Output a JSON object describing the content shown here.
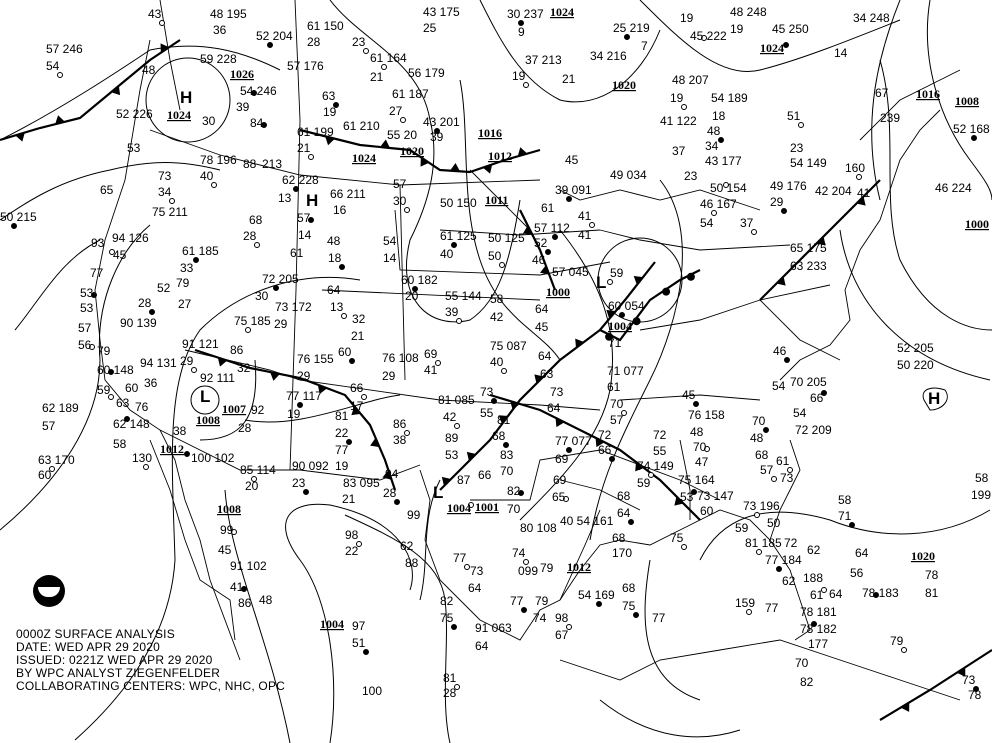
{
  "info": {
    "line1": "0000Z SURFACE ANALYSIS",
    "line2": "DATE: WED APR 29 2020",
    "line3": "ISSUED: 0221Z WED APR 29 2020",
    "line4": "BY WPC ANALYST ZIEGENFELDER",
    "line5": "COLLABORATING CENTERS: WPC, NHC, OPC"
  },
  "logo": {
    "label": "NOAA",
    "icon": "noaa-logo"
  },
  "colors": {
    "ink": "#000000",
    "background": "#ffffff"
  },
  "pressure_labels": [
    "1026",
    "1024",
    "1024",
    "1020",
    "1016",
    "1012",
    "1011",
    "1024",
    "1020",
    "1024",
    "1016",
    "1008",
    "1000",
    "1008",
    "1007",
    "1012",
    "1008",
    "1000",
    "1004",
    "1004",
    "1001",
    "1012",
    "1004",
    "1020"
  ],
  "centers": [
    "H",
    "H",
    "H",
    "L",
    "L",
    "L"
  ],
  "stations": [
    "43",
    "48 195",
    "36",
    "52 204",
    "61 150",
    "28",
    "23",
    "43 175",
    "25",
    "30 237",
    "9",
    "37 213",
    "19",
    "34 216",
    "21",
    "25 219",
    "7",
    "19",
    "45 222",
    "19",
    "48 248",
    "45 250",
    "34 248",
    "57 246",
    "54",
    "48",
    "59 228",
    "54 246",
    "39",
    "57 176",
    "61 164",
    "56 179",
    "21",
    "63",
    "19",
    "61 187",
    "27",
    "52 226",
    "30",
    "84",
    "53",
    "61 199",
    "21",
    "61 210",
    "55 20",
    "43 201",
    "39",
    "78 196",
    "40",
    "88",
    "213",
    "62 228",
    "66 211",
    "57",
    "30",
    "16",
    "13",
    "57",
    "14",
    "68",
    "28",
    "61",
    "48",
    "18",
    "75 211",
    "73",
    "34",
    "65",
    "94 126",
    "61 185",
    "33",
    "79",
    "93",
    "45",
    "77",
    "53",
    "53",
    "57",
    "56",
    "52",
    "27",
    "28",
    "90 139",
    "91 121",
    "75 185",
    "29",
    "73 172",
    "72 205",
    "30",
    "64",
    "13",
    "32",
    "21",
    "60",
    "76 155",
    "76 108",
    "69",
    "29",
    "41",
    "61 125",
    "40",
    "50 125",
    "50",
    "54",
    "14",
    "60 182",
    "20",
    "55 144",
    "39",
    "58",
    "42",
    "52",
    "46",
    "57 045",
    "59",
    "64",
    "45",
    "60 054",
    "71",
    "75 087",
    "40",
    "64",
    "63",
    "73",
    "73",
    "81 085",
    "42",
    "55",
    "81",
    "68",
    "89",
    "53",
    "86",
    "38",
    "64",
    "77 077",
    "69",
    "69",
    "65",
    "83",
    "70",
    "82",
    "70",
    "87",
    "66",
    "99",
    "94",
    "28",
    "71 077",
    "61",
    "70",
    "57",
    "72",
    "66",
    "72",
    "55",
    "74 149",
    "59",
    "68",
    "64",
    "62 189",
    "57",
    "63 170",
    "60",
    "79",
    "60 148",
    "94 131",
    "59",
    "60",
    "36",
    "76",
    "62 148",
    "63",
    "58",
    "130",
    "92 111",
    "100 102",
    "38",
    "86",
    "32",
    "29",
    "28",
    "92",
    "77 117",
    "19",
    "29",
    "66",
    "17",
    "81",
    "22",
    "77",
    "19",
    "85 114",
    "20",
    "90 092",
    "23",
    "83 095",
    "21",
    "99",
    "45",
    "91 102",
    "41",
    "86",
    "48",
    "98",
    "22",
    "97",
    "45",
    "76 158",
    "48",
    "70",
    "47",
    "75 164",
    "53",
    "73 147",
    "60",
    "73 196",
    "50",
    "59",
    "70",
    "48",
    "68",
    "57",
    "54",
    "70 205",
    "66",
    "54",
    "72 209",
    "61",
    "73",
    "58",
    "71",
    "58",
    "199",
    "81 185",
    "72",
    "62",
    "77 184",
    "62",
    "188",
    "61",
    "78 181",
    "77",
    "78 182",
    "64",
    "177",
    "159",
    "77",
    "68",
    "75",
    "68",
    "170",
    "75",
    "64",
    "56",
    "78 183",
    "78",
    "81",
    "79",
    "70",
    "82",
    "73",
    "78",
    "80 108",
    "74",
    "099",
    "79",
    "77",
    "79",
    "74",
    "98",
    "67",
    "82",
    "75",
    "91 063",
    "64",
    "81",
    "28",
    "100",
    "51",
    "62",
    "88",
    "77",
    "73",
    "64",
    "54 169",
    "40 54 161",
    "50 154",
    "46 167",
    "41 122",
    "37",
    "39 091",
    "45",
    "49 034",
    "41",
    "41",
    "61",
    "57 112",
    "50 150",
    "54",
    "37",
    "65 175",
    "63 233",
    "46",
    "52 205",
    "50 220",
    "51",
    "23",
    "54 149",
    "29",
    "49 176",
    "42 204",
    "160",
    "41",
    "46 224",
    "52 168",
    "14",
    "48 207",
    "19",
    "54 189",
    "18",
    "48",
    "34",
    "43 177",
    "23",
    "239",
    "67",
    "50 215"
  ]
}
